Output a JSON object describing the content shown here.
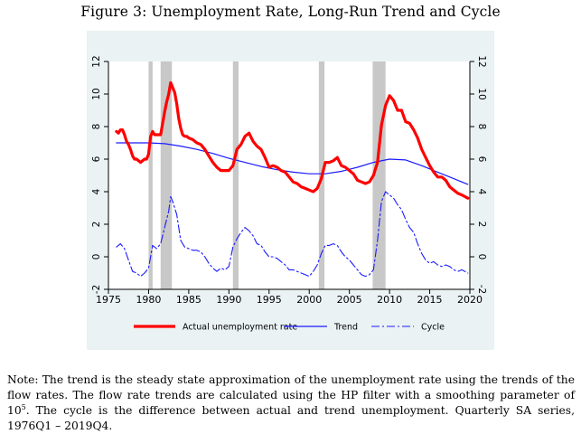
{
  "figure": {
    "title": "Figure 3: Unemployment Rate, Long-Run Trend and Cycle",
    "note_part1": "Note: The trend is the steady state approximation of the unemployment rate using the trends of the flow rates. The flow rate trends are calculated using the HP filter with a smoothing parameter of 10",
    "note_sup": "5",
    "note_part2": ". The cycle is the difference between actual and trend unemployment. Quarterly SA series, 1976Q1 – 2019Q4."
  },
  "chart_data": {
    "type": "line",
    "title": "Figure 3: Unemployment Rate, Long-Run Trend and Cycle",
    "xlabel": "",
    "ylabel": "",
    "xlim": [
      1975,
      2020
    ],
    "ylim": [
      -2,
      12
    ],
    "x_ticks": [
      "1975",
      "1980",
      "1985",
      "1990",
      "1995",
      "2000",
      "2005",
      "2010",
      "2015",
      "2020"
    ],
    "y_ticks": [
      "-2",
      "0",
      "2",
      "4",
      "6",
      "8",
      "10",
      "12"
    ],
    "recessions": [
      [
        1980.0,
        1980.5
      ],
      [
        1981.5,
        1982.9
      ],
      [
        1990.5,
        1991.2
      ],
      [
        2001.2,
        2001.9
      ],
      [
        2007.9,
        2009.5
      ]
    ],
    "legend_position": "bottom",
    "colors": {
      "actual": "#ff0000",
      "trend": "#1a1aff",
      "cycle": "#1a1aff",
      "recession": "#c8c8c8",
      "panel": "#eaf2f3"
    },
    "series": [
      {
        "name": "Actual unemployment rate",
        "style": "solid-thick",
        "x": [
          1976.0,
          1976.25,
          1976.5,
          1976.75,
          1977.0,
          1977.25,
          1977.5,
          1977.75,
          1978.0,
          1978.25,
          1978.5,
          1978.75,
          1979.0,
          1979.25,
          1979.5,
          1979.75,
          1980.0,
          1980.25,
          1980.5,
          1980.75,
          1981.0,
          1981.25,
          1981.5,
          1981.75,
          1982.0,
          1982.25,
          1982.5,
          1982.75,
          1983.0,
          1983.25,
          1983.5,
          1983.75,
          1984.0,
          1984.25,
          1984.5,
          1984.75,
          1985.0,
          1985.5,
          1986.0,
          1986.5,
          1987.0,
          1987.5,
          1988.0,
          1988.5,
          1989.0,
          1989.5,
          1990.0,
          1990.5,
          1991.0,
          1991.5,
          1992.0,
          1992.5,
          1993.0,
          1993.5,
          1994.0,
          1994.5,
          1995.0,
          1995.5,
          1996.0,
          1996.5,
          1997.0,
          1997.5,
          1998.0,
          1998.5,
          1999.0,
          1999.5,
          2000.0,
          2000.5,
          2001.0,
          2001.5,
          2002.0,
          2002.5,
          2003.0,
          2003.5,
          2004.0,
          2004.5,
          2005.0,
          2005.5,
          2006.0,
          2006.5,
          2007.0,
          2007.5,
          2008.0,
          2008.5,
          2009.0,
          2009.5,
          2010.0,
          2010.5,
          2011.0,
          2011.5,
          2012.0,
          2012.5,
          2013.0,
          2013.5,
          2014.0,
          2014.5,
          2015.0,
          2015.5,
          2016.0,
          2016.5,
          2017.0,
          2017.5,
          2018.0,
          2018.5,
          2019.0,
          2019.75
        ],
        "values": [
          7.7,
          7.6,
          7.8,
          7.8,
          7.5,
          7.1,
          6.9,
          6.6,
          6.2,
          6.0,
          6.0,
          5.9,
          5.8,
          5.9,
          6.0,
          6.0,
          6.3,
          7.4,
          7.7,
          7.5,
          7.5,
          7.5,
          7.5,
          8.2,
          8.9,
          9.5,
          10.0,
          10.7,
          10.4,
          10.1,
          9.4,
          8.5,
          7.9,
          7.5,
          7.4,
          7.4,
          7.3,
          7.2,
          7.0,
          6.9,
          6.6,
          6.2,
          5.8,
          5.5,
          5.3,
          5.3,
          5.3,
          5.6,
          6.6,
          6.9,
          7.4,
          7.6,
          7.1,
          6.8,
          6.6,
          6.1,
          5.5,
          5.6,
          5.5,
          5.3,
          5.2,
          4.9,
          4.6,
          4.5,
          4.3,
          4.2,
          4.1,
          4.0,
          4.2,
          4.8,
          5.8,
          5.8,
          5.9,
          6.1,
          5.6,
          5.5,
          5.3,
          5.1,
          4.7,
          4.6,
          4.5,
          4.6,
          5.0,
          5.8,
          8.1,
          9.3,
          9.9,
          9.6,
          9.0,
          9.0,
          8.3,
          8.2,
          7.8,
          7.3,
          6.6,
          6.1,
          5.6,
          5.2,
          4.9,
          4.9,
          4.7,
          4.3,
          4.1,
          3.9,
          3.8,
          3.6
        ]
      },
      {
        "name": "Trend",
        "style": "solid",
        "x": [
          1976,
          1978,
          1980,
          1982,
          1984,
          1986,
          1988,
          1990,
          1992,
          1994,
          1996,
          1998,
          2000,
          2002,
          2004,
          2006,
          2008,
          2010,
          2012,
          2014,
          2016,
          2018,
          2019.75
        ],
        "values": [
          7.0,
          7.0,
          7.0,
          6.95,
          6.8,
          6.6,
          6.35,
          6.05,
          5.8,
          5.55,
          5.35,
          5.2,
          5.1,
          5.1,
          5.25,
          5.5,
          5.8,
          6.0,
          5.95,
          5.6,
          5.2,
          4.8,
          4.45
        ]
      },
      {
        "name": "Cycle",
        "style": "dash-dot",
        "x": [
          1976.0,
          1976.5,
          1977.0,
          1977.5,
          1978.0,
          1978.5,
          1979.0,
          1979.5,
          1980.0,
          1980.5,
          1981.0,
          1981.5,
          1982.0,
          1982.5,
          1982.75,
          1983.0,
          1983.5,
          1984.0,
          1984.5,
          1985.0,
          1985.5,
          1986.0,
          1986.5,
          1987.0,
          1987.5,
          1988.0,
          1988.5,
          1989.0,
          1989.5,
          1990.0,
          1990.5,
          1991.0,
          1991.5,
          1992.0,
          1992.5,
          1993.0,
          1993.5,
          1994.0,
          1994.5,
          1995.0,
          1995.5,
          1996.0,
          1996.5,
          1997.0,
          1997.5,
          1998.0,
          1998.5,
          1999.0,
          1999.5,
          2000.0,
          2000.5,
          2001.0,
          2001.5,
          2002.0,
          2002.5,
          2003.0,
          2003.5,
          2004.0,
          2004.5,
          2005.0,
          2005.5,
          2006.0,
          2006.5,
          2007.0,
          2007.5,
          2008.0,
          2008.5,
          2009.0,
          2009.5,
          2010.0,
          2010.5,
          2011.0,
          2011.5,
          2012.0,
          2012.5,
          2013.0,
          2013.5,
          2014.0,
          2014.5,
          2015.0,
          2015.5,
          2016.0,
          2016.5,
          2017.0,
          2017.5,
          2018.0,
          2018.5,
          2019.0,
          2019.75
        ],
        "values": [
          0.6,
          0.8,
          0.5,
          -0.2,
          -0.9,
          -1.0,
          -1.2,
          -1.0,
          -0.7,
          0.7,
          0.5,
          0.8,
          1.8,
          2.8,
          3.7,
          3.4,
          2.6,
          1.0,
          0.6,
          0.5,
          0.4,
          0.4,
          0.3,
          0.0,
          -0.4,
          -0.7,
          -0.9,
          -0.7,
          -0.8,
          -0.6,
          0.6,
          1.1,
          1.5,
          1.8,
          1.6,
          1.3,
          0.8,
          0.7,
          0.3,
          0.0,
          0.0,
          -0.1,
          -0.3,
          -0.5,
          -0.8,
          -0.8,
          -0.9,
          -1.0,
          -1.1,
          -1.2,
          -0.9,
          -0.5,
          0.2,
          0.7,
          0.7,
          0.8,
          0.7,
          0.3,
          0.0,
          -0.2,
          -0.5,
          -0.8,
          -1.1,
          -1.2,
          -1.1,
          -0.8,
          1.0,
          3.4,
          4.0,
          3.8,
          3.6,
          3.2,
          2.9,
          2.3,
          1.8,
          1.5,
          0.8,
          0.2,
          -0.2,
          -0.4,
          -0.3,
          -0.5,
          -0.6,
          -0.5,
          -0.6,
          -0.8,
          -0.9,
          -0.8,
          -1.0
        ]
      }
    ]
  }
}
